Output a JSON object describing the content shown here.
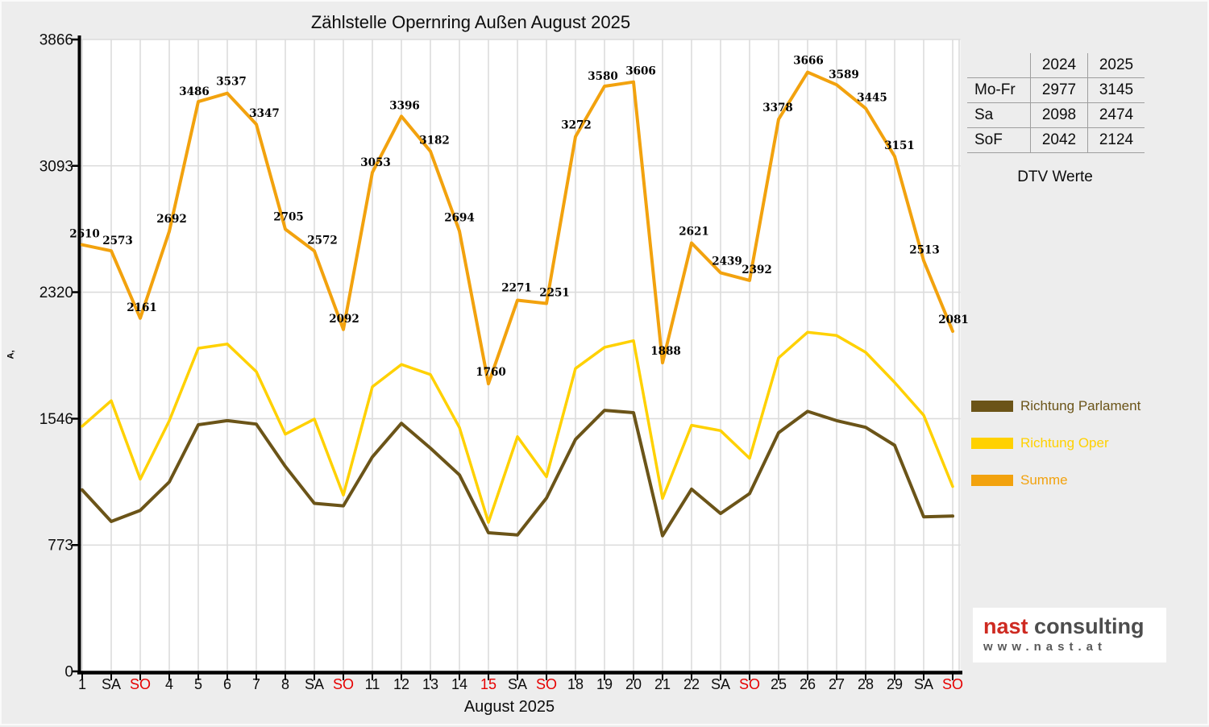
{
  "title": "Zählstelle Opernring Außen August 2025",
  "x_axis_title": "August 2025",
  "y_axis_title": "A,",
  "chart_data": {
    "type": "line",
    "categories": [
      "1",
      "SA",
      "SO",
      "4",
      "5",
      "6",
      "7",
      "8",
      "SA",
      "SO",
      "11",
      "12",
      "13",
      "14",
      "15",
      "SA",
      "SO",
      "18",
      "19",
      "20",
      "21",
      "22",
      "SA",
      "SO",
      "25",
      "26",
      "27",
      "28",
      "29",
      "SA",
      "SO"
    ],
    "holiday_indices": [
      2,
      9,
      14,
      16,
      23,
      30
    ],
    "ylim": [
      0,
      3866
    ],
    "yticks": [
      0,
      773,
      1546,
      2320,
      3093,
      3866
    ],
    "grid": true,
    "legend_position": "right",
    "series": [
      {
        "name": "Richtung Parlament",
        "color": "#6B5418",
        "values": [
          1110,
          917,
          985,
          1159,
          1509,
          1534,
          1513,
          1254,
          1028,
          1013,
          1312,
          1518,
          1366,
          1202,
          848,
          835,
          1060,
          1419,
          1597,
          1583,
          830,
          1115,
          966,
          1088,
          1460,
          1591,
          1534,
          1493,
          1383,
          946,
          950
        ]
      },
      {
        "name": "Richtung Oper",
        "color": "#FFD100",
        "values": [
          1500,
          1656,
          1176,
          1533,
          1977,
          2003,
          1834,
          1451,
          1544,
          1079,
          1741,
          1878,
          1816,
          1492,
          912,
          1436,
          1191,
          1853,
          1983,
          2023,
          1058,
          1506,
          1473,
          1304,
          1918,
          2075,
          2055,
          1952,
          1768,
          1567,
          1131
        ]
      },
      {
        "name": "Summe",
        "color": "#F2A20E",
        "labeled": true,
        "values": [
          2610,
          2573,
          2161,
          2692,
          3486,
          3537,
          3347,
          2705,
          2572,
          2092,
          3053,
          3396,
          3182,
          2694,
          1760,
          2271,
          2251,
          3272,
          3580,
          3606,
          1888,
          2621,
          2439,
          2392,
          3378,
          3666,
          3589,
          3445,
          3151,
          2513,
          2081
        ]
      }
    ]
  },
  "table": {
    "columns": [
      "",
      "2024",
      "2025"
    ],
    "rows": [
      {
        "label": "Mo-Fr",
        "y2024": "2977",
        "y2025": "3145"
      },
      {
        "label": "Sa",
        "y2024": "2098",
        "y2025": "2474"
      },
      {
        "label": "SoF",
        "y2024": "2042",
        "y2025": "2124"
      }
    ],
    "caption": "DTV Werte"
  },
  "legend": {
    "items": [
      {
        "label": "Richtung Parlament",
        "color": "#6B5418"
      },
      {
        "label": "Richtung Oper",
        "color": "#FFD100"
      },
      {
        "label": "Summe",
        "color": "#F2A20E"
      }
    ]
  },
  "logo": {
    "brand_red": "nast",
    "brand_gray": "consulting",
    "url": "www.nast.at"
  },
  "colors": {
    "background": "#EDEDED",
    "plot_bg": "#FFFFFF",
    "grid": "#DCDCDC",
    "axis": "#000000",
    "holiday": "#E60000",
    "label": "#000000",
    "logo_red": "#CE2A21",
    "logo_gray": "#4D4D4D",
    "url_gray": "#5A5A5A",
    "table_line": "#9E9E9E"
  }
}
